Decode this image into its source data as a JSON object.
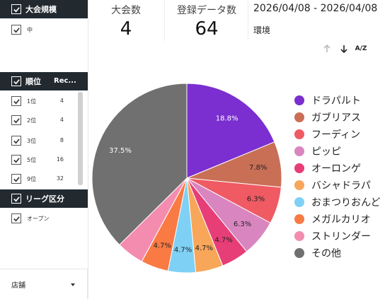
{
  "sidebar": {
    "size_filter": {
      "header": "大会規模",
      "items": [
        {
          "label": "中"
        }
      ]
    },
    "rank_filter": {
      "header": "順位",
      "col2": "Rec...",
      "items": [
        {
          "label": "1位",
          "count": "4"
        },
        {
          "label": "2位",
          "count": "4"
        },
        {
          "label": "3位",
          "count": "8"
        },
        {
          "label": "5位",
          "count": "16"
        },
        {
          "label": "9位",
          "count": "32"
        }
      ]
    },
    "league_filter": {
      "header": "リーグ区分",
      "items": [
        {
          "label": "オープン"
        }
      ]
    },
    "store_select": {
      "label": "店舗"
    }
  },
  "kpis": [
    {
      "label": "大会数",
      "value": "4"
    },
    {
      "label": "登録データ数",
      "value": "64"
    }
  ],
  "date_range": "2026/04/08 - 2026/04/08",
  "env_label": "環境",
  "toolbar": {
    "sort_az_label": "A/Z"
  },
  "colors": {
    "header_bg": "#222a30"
  },
  "chart_data": {
    "type": "pie",
    "title": "",
    "categories": [
      "ドラパルト",
      "ガブリアス",
      "フーディン",
      "ピッピ",
      "オーロンゲ",
      "バシャドラパ",
      "おまつりおんど",
      "メガルカリオ",
      "ストリンダー",
      "その他"
    ],
    "values": [
      18.8,
      7.8,
      6.3,
      6.3,
      4.7,
      4.7,
      4.7,
      4.7,
      4.7,
      37.5
    ],
    "labels": [
      "18.8%",
      "7.8%",
      "6.3%",
      "6.3%",
      "4.7%",
      "4.7%",
      "4.7%",
      "4.7%",
      "",
      "37.5%"
    ],
    "colors": [
      "#7b2fd0",
      "#c96f56",
      "#ef5a63",
      "#d986c0",
      "#e73e78",
      "#f7a65a",
      "#7fd0f5",
      "#f97a43",
      "#f48cb0",
      "#707070"
    ],
    "legend": "right"
  }
}
